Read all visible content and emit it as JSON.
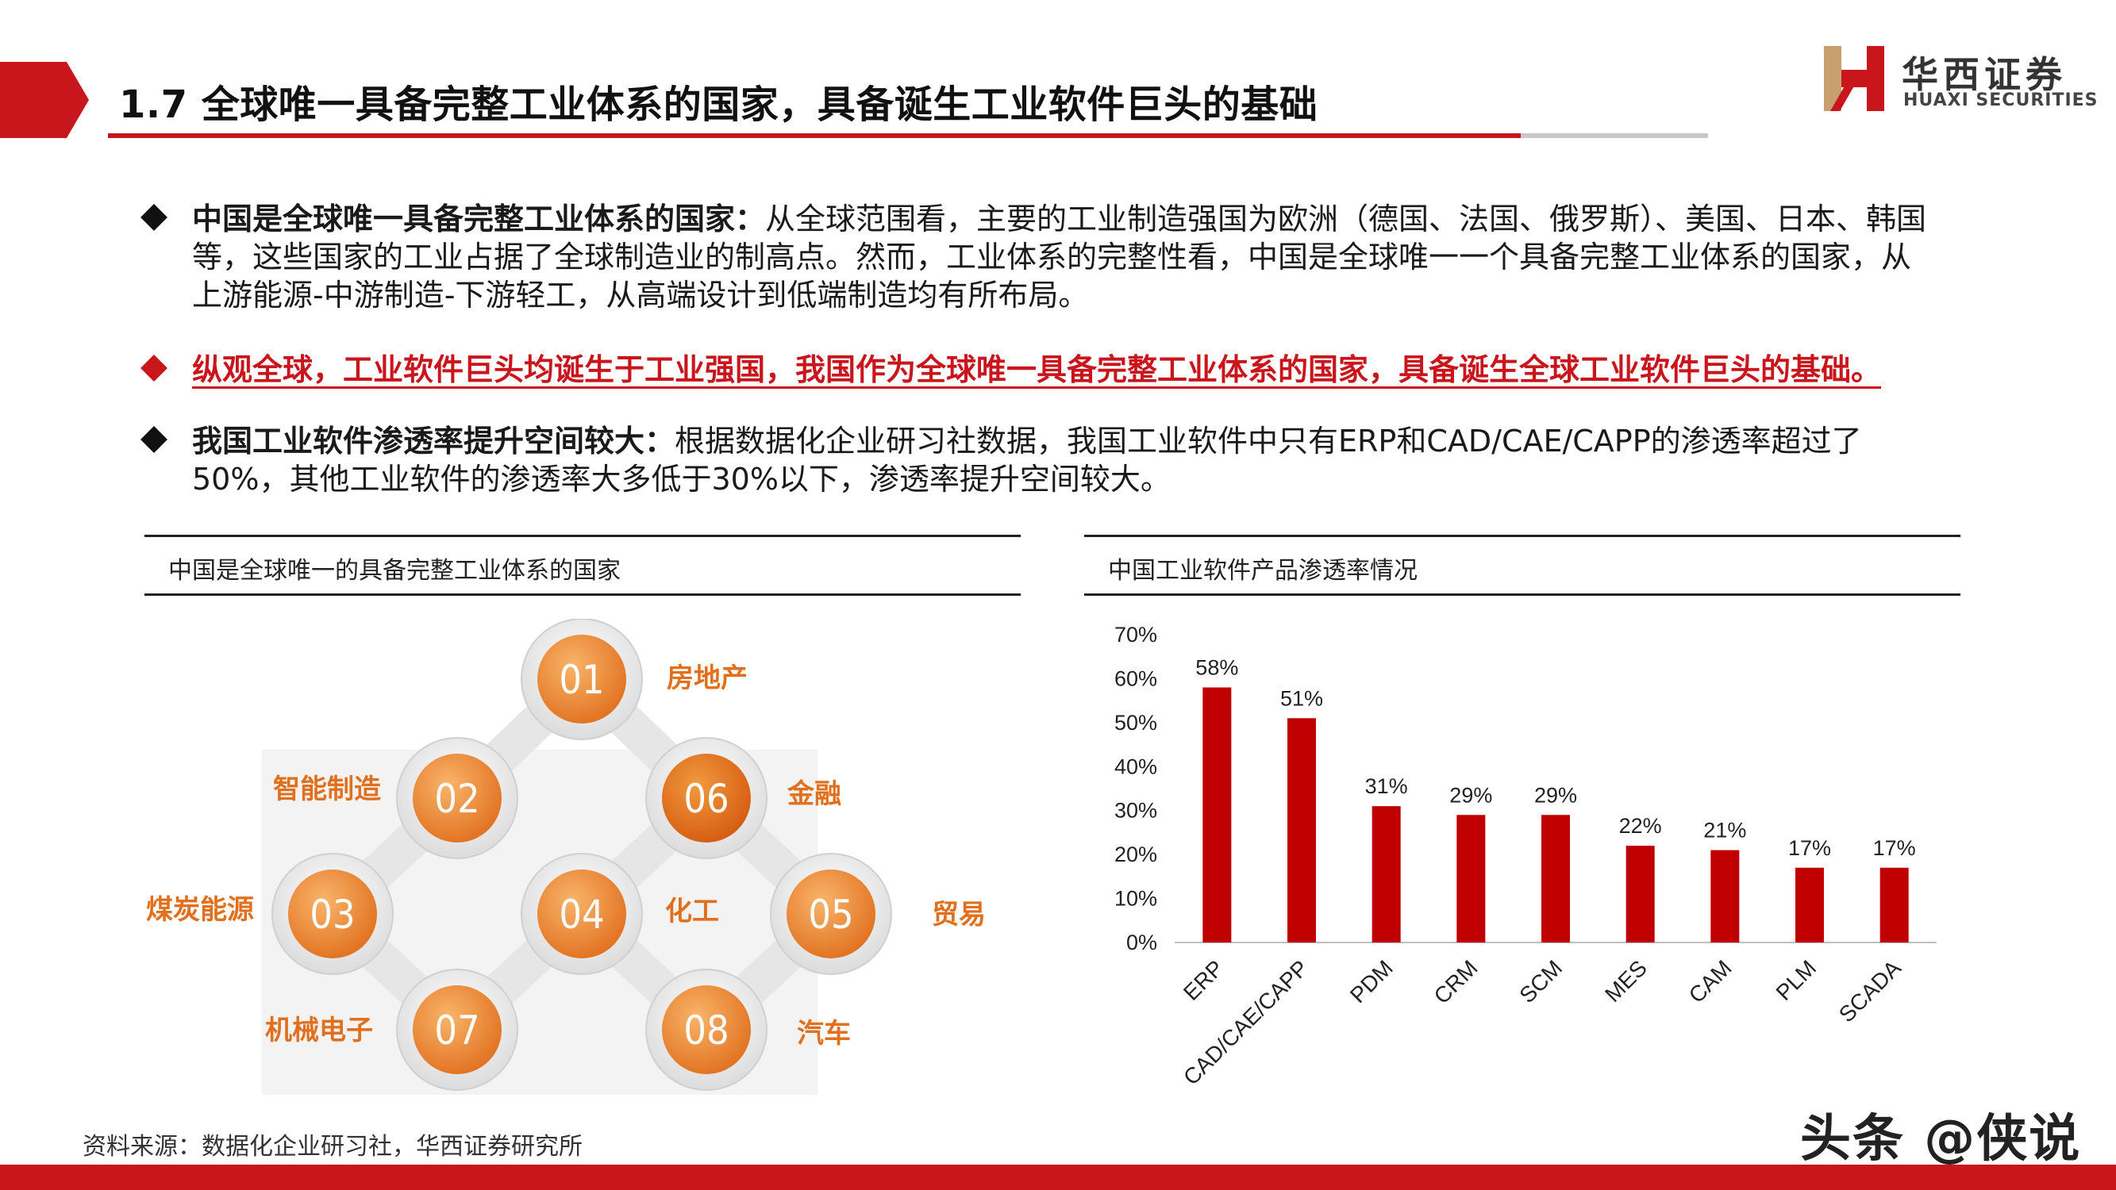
{
  "header": {
    "title": "1.7 全球唯一具备完整工业体系的国家，具备诞生工业软件巨头的基础",
    "logo_cn": "华西证券",
    "logo_en": "HUAXI SECURITIES",
    "accent_color": "#c9161d"
  },
  "bullets": [
    {
      "lead": "中国是全球唯一具备完整工业体系的国家：",
      "body": "从全球范围看，主要的工业制造强国为欧洲（德国、法国、俄罗斯）、美国、日本、韩国等，这些国家的工业占据了全球制造业的制高点。然而，工业体系的完整性看，中国是全球唯一一个具备完整工业体系的国家，从上游能源-中游制造-下游轻工，从高端设计到低端制造均有所布局。"
    },
    {
      "lead": "纵观全球，工业软件巨头均诞生于工业强国，我国作为全球唯一具备完整工业体系的国家，具备诞生全球工业软件巨头的基础。",
      "body": ""
    },
    {
      "lead": "我国工业软件渗透率提升空间较大：",
      "body": "根据数据化企业研习社数据，我国工业软件中只有ERP和CAD/CAE/CAPP的渗透率超过了50%，其他工业软件的渗透率大多低于30%以下，渗透率提升空间较大。"
    }
  ],
  "left_panel": {
    "caption": "中国是全球唯一的具备完整工业体系的国家",
    "nodes": [
      {
        "num": "01",
        "label": "房地产"
      },
      {
        "num": "02",
        "label": "智能制造"
      },
      {
        "num": "06",
        "label": "金融"
      },
      {
        "num": "03",
        "label": "煤炭能源"
      },
      {
        "num": "04",
        "label": "化工"
      },
      {
        "num": "05",
        "label": "贸易"
      },
      {
        "num": "07",
        "label": "机械电子"
      },
      {
        "num": "08",
        "label": "汽车"
      }
    ]
  },
  "right_panel": {
    "caption": "中国工业软件产品渗透率情况"
  },
  "chart_data": {
    "type": "bar",
    "categories": [
      "ERP",
      "CAD/CAE/CAPP",
      "PDM",
      "CRM",
      "SCM",
      "MES",
      "CAM",
      "PLM",
      "SCADA"
    ],
    "values": [
      58,
      51,
      31,
      29,
      29,
      22,
      21,
      17,
      17
    ],
    "data_labels": [
      "58%",
      "51%",
      "31%",
      "29%",
      "29%",
      "22%",
      "21%",
      "17%",
      "17%"
    ],
    "yticks": [
      "0%",
      "10%",
      "20%",
      "30%",
      "40%",
      "50%",
      "60%",
      "70%"
    ],
    "ylim": [
      0,
      70
    ],
    "title": "",
    "xlabel": "",
    "ylabel": "",
    "grid": false,
    "bar_color": "#c00000"
  },
  "footer": {
    "source": "资料来源：数据化企业研习社，华西证券研究所",
    "watermark": "头条 @侠说"
  }
}
